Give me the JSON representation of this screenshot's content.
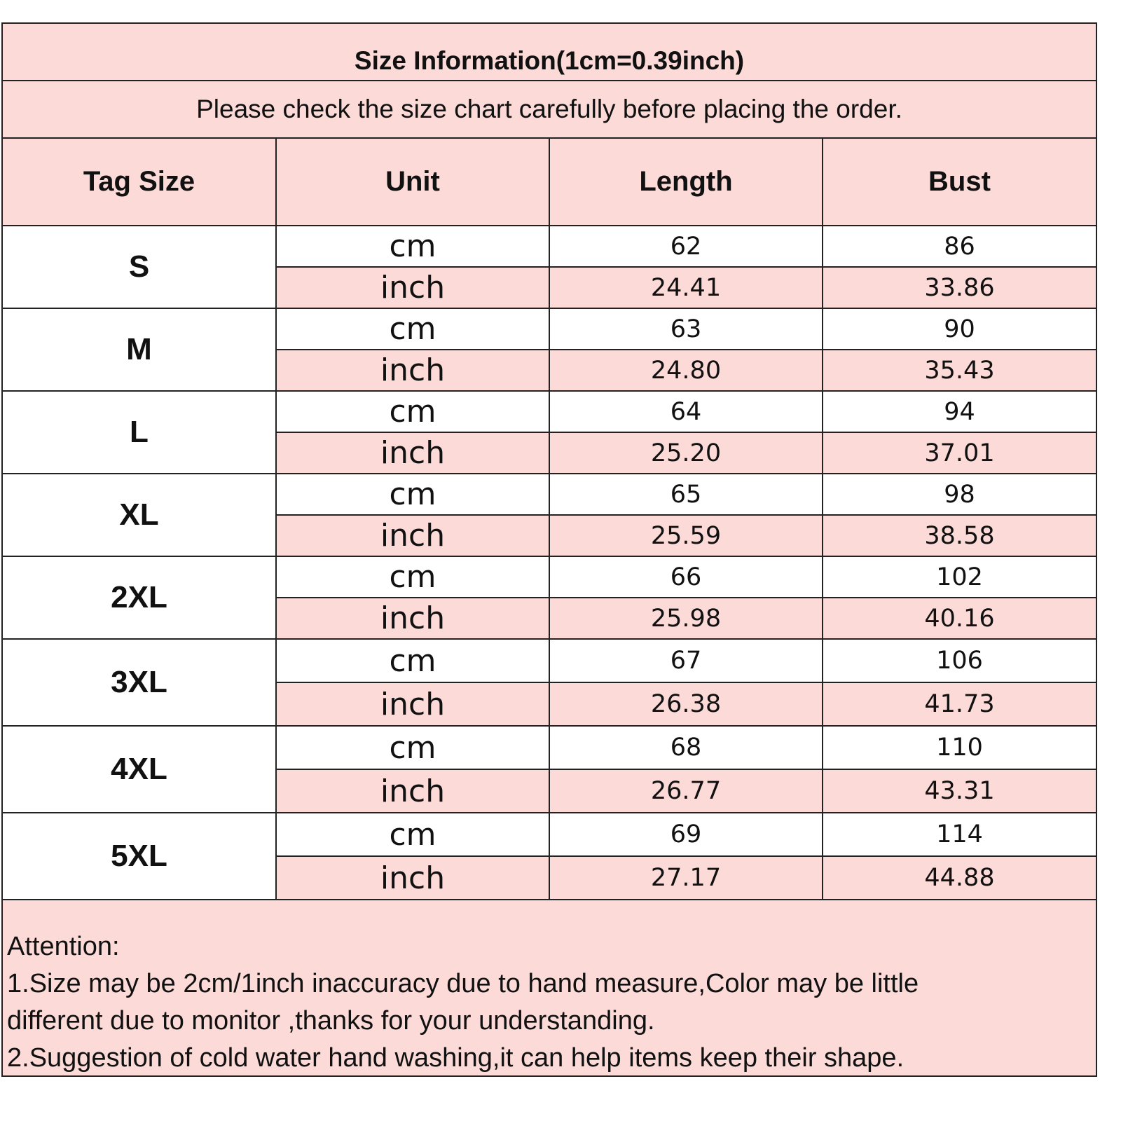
{
  "title": "Size Information(1cm=0.39inch)",
  "subtitle": "Please check the size chart carefully before placing the order.",
  "columns": [
    "Tag Size",
    "Unit",
    "Length",
    "Bust"
  ],
  "rows": [
    {
      "size": "S",
      "cm": {
        "unit": "cm",
        "length": "62",
        "bust": "86"
      },
      "inch": {
        "unit": "inch",
        "length": "24.41",
        "bust": "33.86"
      }
    },
    {
      "size": "M",
      "cm": {
        "unit": "cm",
        "length": "63",
        "bust": "90"
      },
      "inch": {
        "unit": "inch",
        "length": "24.80",
        "bust": "35.43"
      }
    },
    {
      "size": "L",
      "cm": {
        "unit": "cm",
        "length": "64",
        "bust": "94"
      },
      "inch": {
        "unit": "inch",
        "length": "25.20",
        "bust": "37.01"
      }
    },
    {
      "size": "XL",
      "cm": {
        "unit": "cm",
        "length": "65",
        "bust": "98"
      },
      "inch": {
        "unit": "inch",
        "length": "25.59",
        "bust": "38.58"
      }
    },
    {
      "size": "2XL",
      "cm": {
        "unit": "cm",
        "length": "66",
        "bust": "102"
      },
      "inch": {
        "unit": "inch",
        "length": "25.98",
        "bust": "40.16"
      }
    },
    {
      "size": "3XL",
      "cm": {
        "unit": "cm",
        "length": "67",
        "bust": "106"
      },
      "inch": {
        "unit": "inch",
        "length": "26.38",
        "bust": "41.73"
      }
    },
    {
      "size": "4XL",
      "cm": {
        "unit": "cm",
        "length": "68",
        "bust": "110"
      },
      "inch": {
        "unit": "inch",
        "length": "26.77",
        "bust": "43.31"
      }
    },
    {
      "size": "5XL",
      "cm": {
        "unit": "cm",
        "length": "69",
        "bust": "114"
      },
      "inch": {
        "unit": "inch",
        "length": "27.17",
        "bust": "44.88"
      }
    }
  ],
  "notes": {
    "heading": "Attention:",
    "lines": [
      "1.Size may be 2cm/1inch inaccuracy due to hand measure,Color may be little",
      "different due to monitor ,thanks for your understanding.",
      "2.Suggestion of cold water hand washing,it can help items keep their shape."
    ]
  },
  "colors": {
    "header_bg": "#fbdad7",
    "border": "#222222"
  }
}
